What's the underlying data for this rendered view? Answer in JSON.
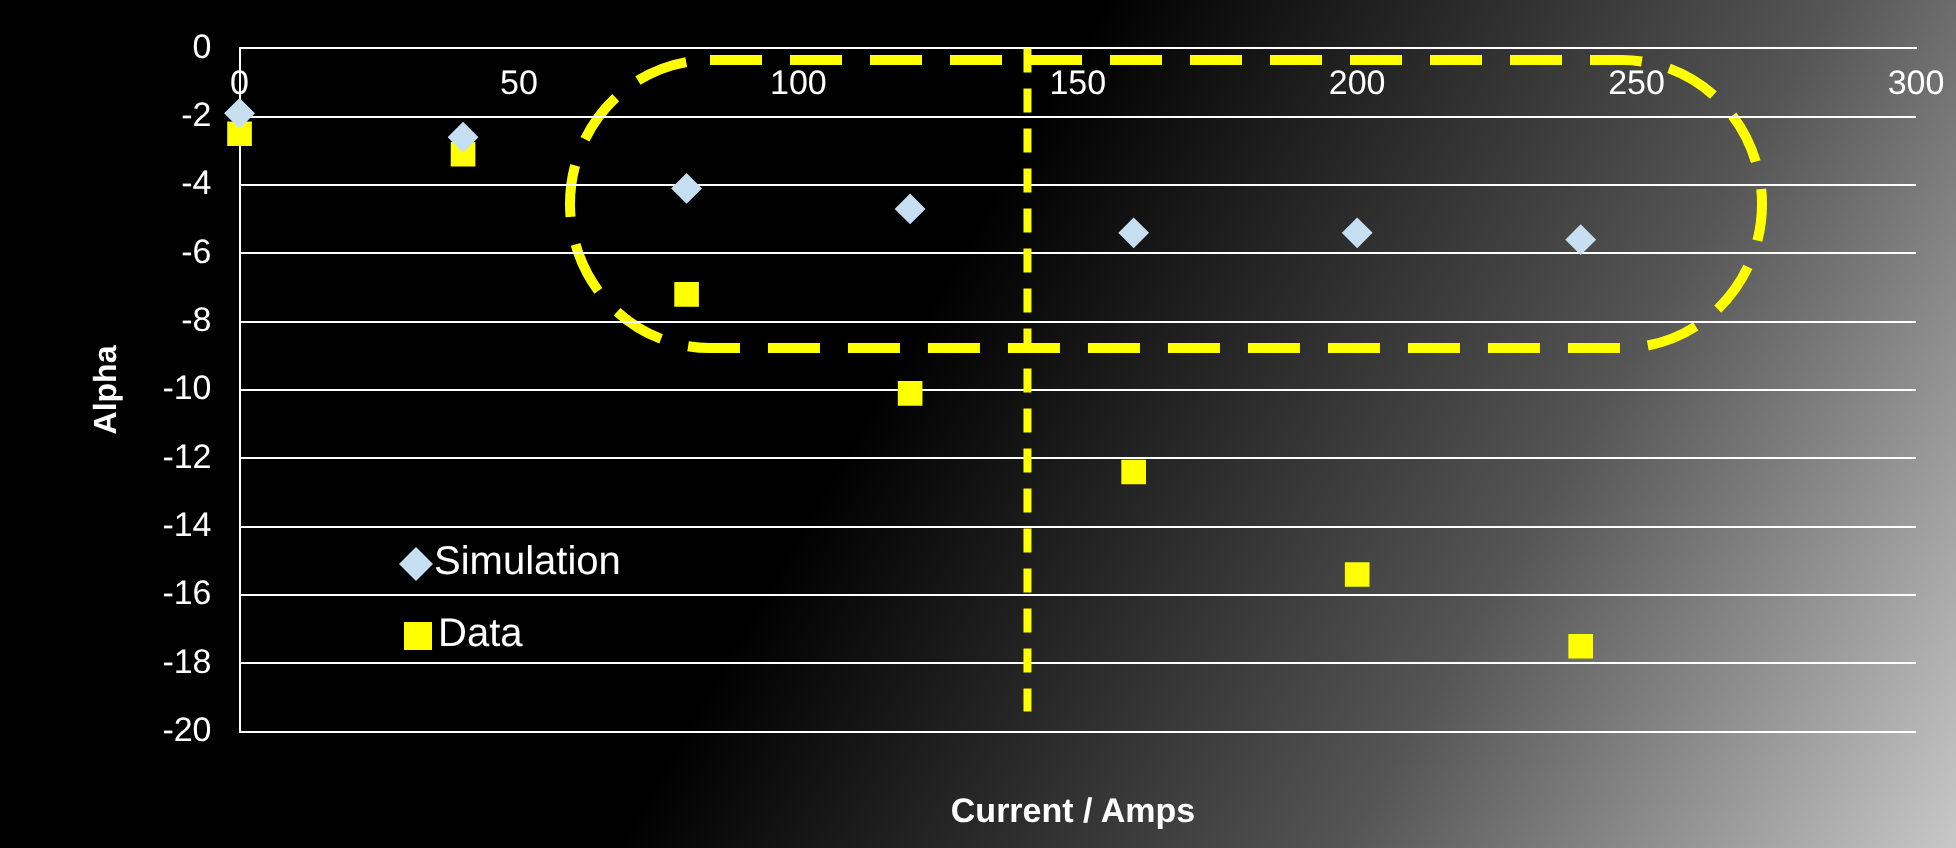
{
  "chart_data": {
    "type": "scatter",
    "xlabel": "Current / Amps",
    "ylabel": "Alpha",
    "x": [
      0,
      40,
      80,
      120,
      160,
      200,
      240
    ],
    "series": [
      {
        "name": "Simulation",
        "color": "#c6dff2",
        "marker": "diamond",
        "values": [
          -1.9,
          -2.6,
          -4.1,
          -4.7,
          -5.4,
          -5.4,
          -5.6
        ]
      },
      {
        "name": "Data",
        "color": "#ffff00",
        "marker": "square",
        "values": [
          -2.5,
          -3.1,
          -7.2,
          -10.1,
          -12.4,
          -15.4,
          -17.5
        ]
      }
    ],
    "xlim": [
      0,
      300
    ],
    "xticks": [
      0,
      50,
      100,
      150,
      200,
      250,
      300
    ],
    "ylim": [
      -20,
      0
    ],
    "yticks": [
      -20,
      -18,
      -16,
      -14,
      -12,
      -10,
      -8,
      -6,
      -4,
      -2,
      0
    ],
    "grid": "y",
    "legend": "left",
    "ref_lines": [
      {
        "axis": "x",
        "value": 141,
        "color": "#ffff00",
        "line_style": "dashed"
      }
    ]
  }
}
